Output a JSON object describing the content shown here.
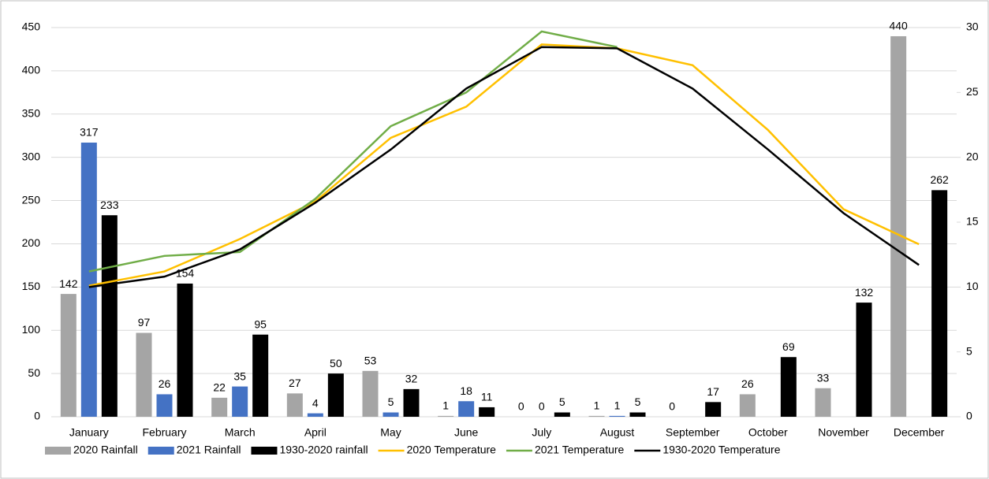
{
  "chart_data": {
    "type": "bar",
    "categories": [
      "January",
      "February",
      "March",
      "April",
      "May",
      "June",
      "July",
      "August",
      "September",
      "October",
      "November",
      "December"
    ],
    "ylim": [
      0,
      450
    ],
    "yticks": [
      0,
      50,
      100,
      150,
      200,
      250,
      300,
      350,
      400,
      450
    ],
    "y2lim": [
      0,
      30
    ],
    "y2ticks": [
      0,
      5,
      10,
      15,
      20,
      25,
      30
    ],
    "grid": true,
    "legend": "bottom",
    "series": [
      {
        "name": "2020 Rainfall",
        "type": "bar",
        "color": "#a5a5a5",
        "values": [
          142,
          97,
          22,
          27,
          53,
          1,
          0,
          1,
          0,
          26,
          33,
          440
        ]
      },
      {
        "name": "2021 Rainfall",
        "type": "bar",
        "color": "#4472c4",
        "values": [
          317,
          26,
          35,
          4,
          5,
          18,
          0,
          1,
          null,
          null,
          null,
          null
        ]
      },
      {
        "name": "1930-2020 rainfall",
        "type": "bar",
        "color": "#000000",
        "values": [
          233,
          154,
          95,
          50,
          32,
          11,
          5,
          5,
          17,
          69,
          132,
          262
        ]
      },
      {
        "name": "2020 Temperature",
        "type": "line",
        "axis": "y2",
        "color": "#ffc000",
        "values": [
          10.1,
          11.2,
          13.7,
          16.6,
          21.5,
          23.9,
          28.7,
          28.4,
          27.1,
          22.1,
          16.0,
          13.3
        ]
      },
      {
        "name": "2021 Temperature",
        "type": "line",
        "axis": "y2",
        "color": "#70ad47",
        "values": [
          11.2,
          12.4,
          12.7,
          16.8,
          22.4,
          25.0,
          29.7,
          28.5,
          null,
          null,
          null,
          null
        ]
      },
      {
        "name": "1930-2020 Temperature",
        "type": "line",
        "axis": "y2",
        "color": "#000000",
        "values": [
          10.0,
          10.8,
          12.9,
          16.5,
          20.6,
          25.3,
          28.5,
          28.4,
          25.3,
          20.6,
          15.7,
          11.7
        ]
      }
    ]
  }
}
